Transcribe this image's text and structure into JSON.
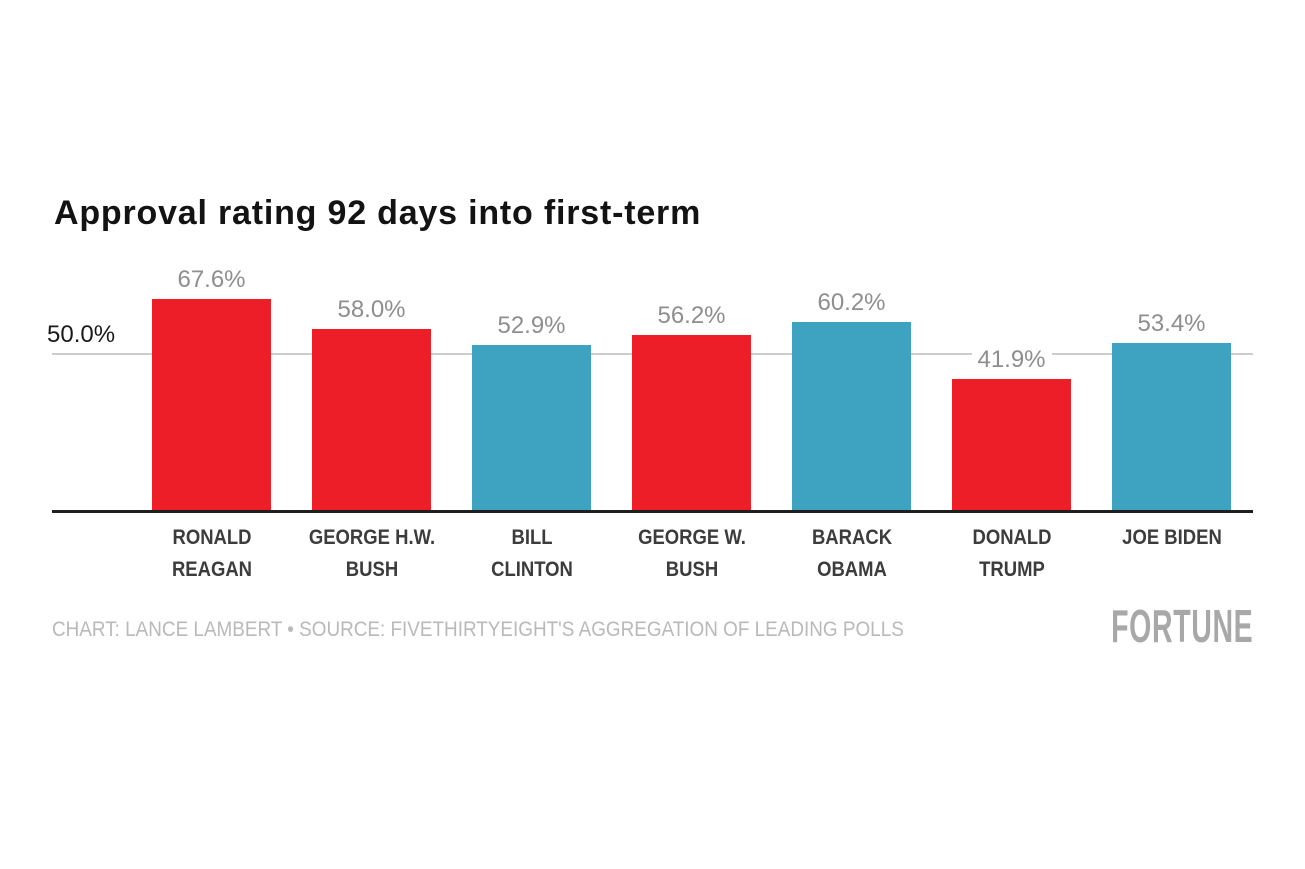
{
  "chart": {
    "title": "Approval rating 92 days into first-term",
    "y_tick_label": "50.0%"
  },
  "chart_data": {
    "type": "bar",
    "title": "Approval rating 92 days into first-term",
    "categories": [
      "RONALD\nREAGAN",
      "GEORGE H.W.\nBUSH",
      "BILL\nCLINTON",
      "GEORGE W.\nBUSH",
      "BARACK\nOBAMA",
      "DONALD\nTRUMP",
      "JOE BIDEN"
    ],
    "values": [
      67.6,
      58.0,
      52.9,
      56.2,
      60.2,
      41.9,
      53.4
    ],
    "value_labels": [
      "67.6%",
      "58.0%",
      "52.9%",
      "56.2%",
      "60.2%",
      "41.9%",
      "53.4%"
    ],
    "bar_colors": [
      "#ED1E27",
      "#ED1E27",
      "#3DA3C1",
      "#ED1E27",
      "#3DA3C1",
      "#ED1E27",
      "#3DA3C1"
    ],
    "xlabel": "",
    "ylabel": "",
    "ylim": [
      0,
      72
    ],
    "grid": "single horizontal gridline at 50.0%",
    "gridlines": [
      {
        "value": 50.0,
        "label": "50.0%"
      }
    ],
    "legend": "none"
  },
  "footer": {
    "credit": "CHART: LANCE LAMBERT • SOURCE: FIVETHIRTYEIGHT'S AGGREGATION OF LEADING POLLS",
    "logo": "FORTUNE"
  },
  "colors": {
    "republican_red": "#ED1E27",
    "democrat_blue": "#3DA3C1",
    "gridline_gray": "#CDCDCD",
    "axis_line": "#1F1F1F",
    "value_label_gray": "#8E8E8E",
    "title_black": "#131313",
    "x_label_gray": "#3C3C3C",
    "credit_gray": "#B9B9B9",
    "logo_gray": "#A8A8A8",
    "background": "#FFFFFF"
  }
}
